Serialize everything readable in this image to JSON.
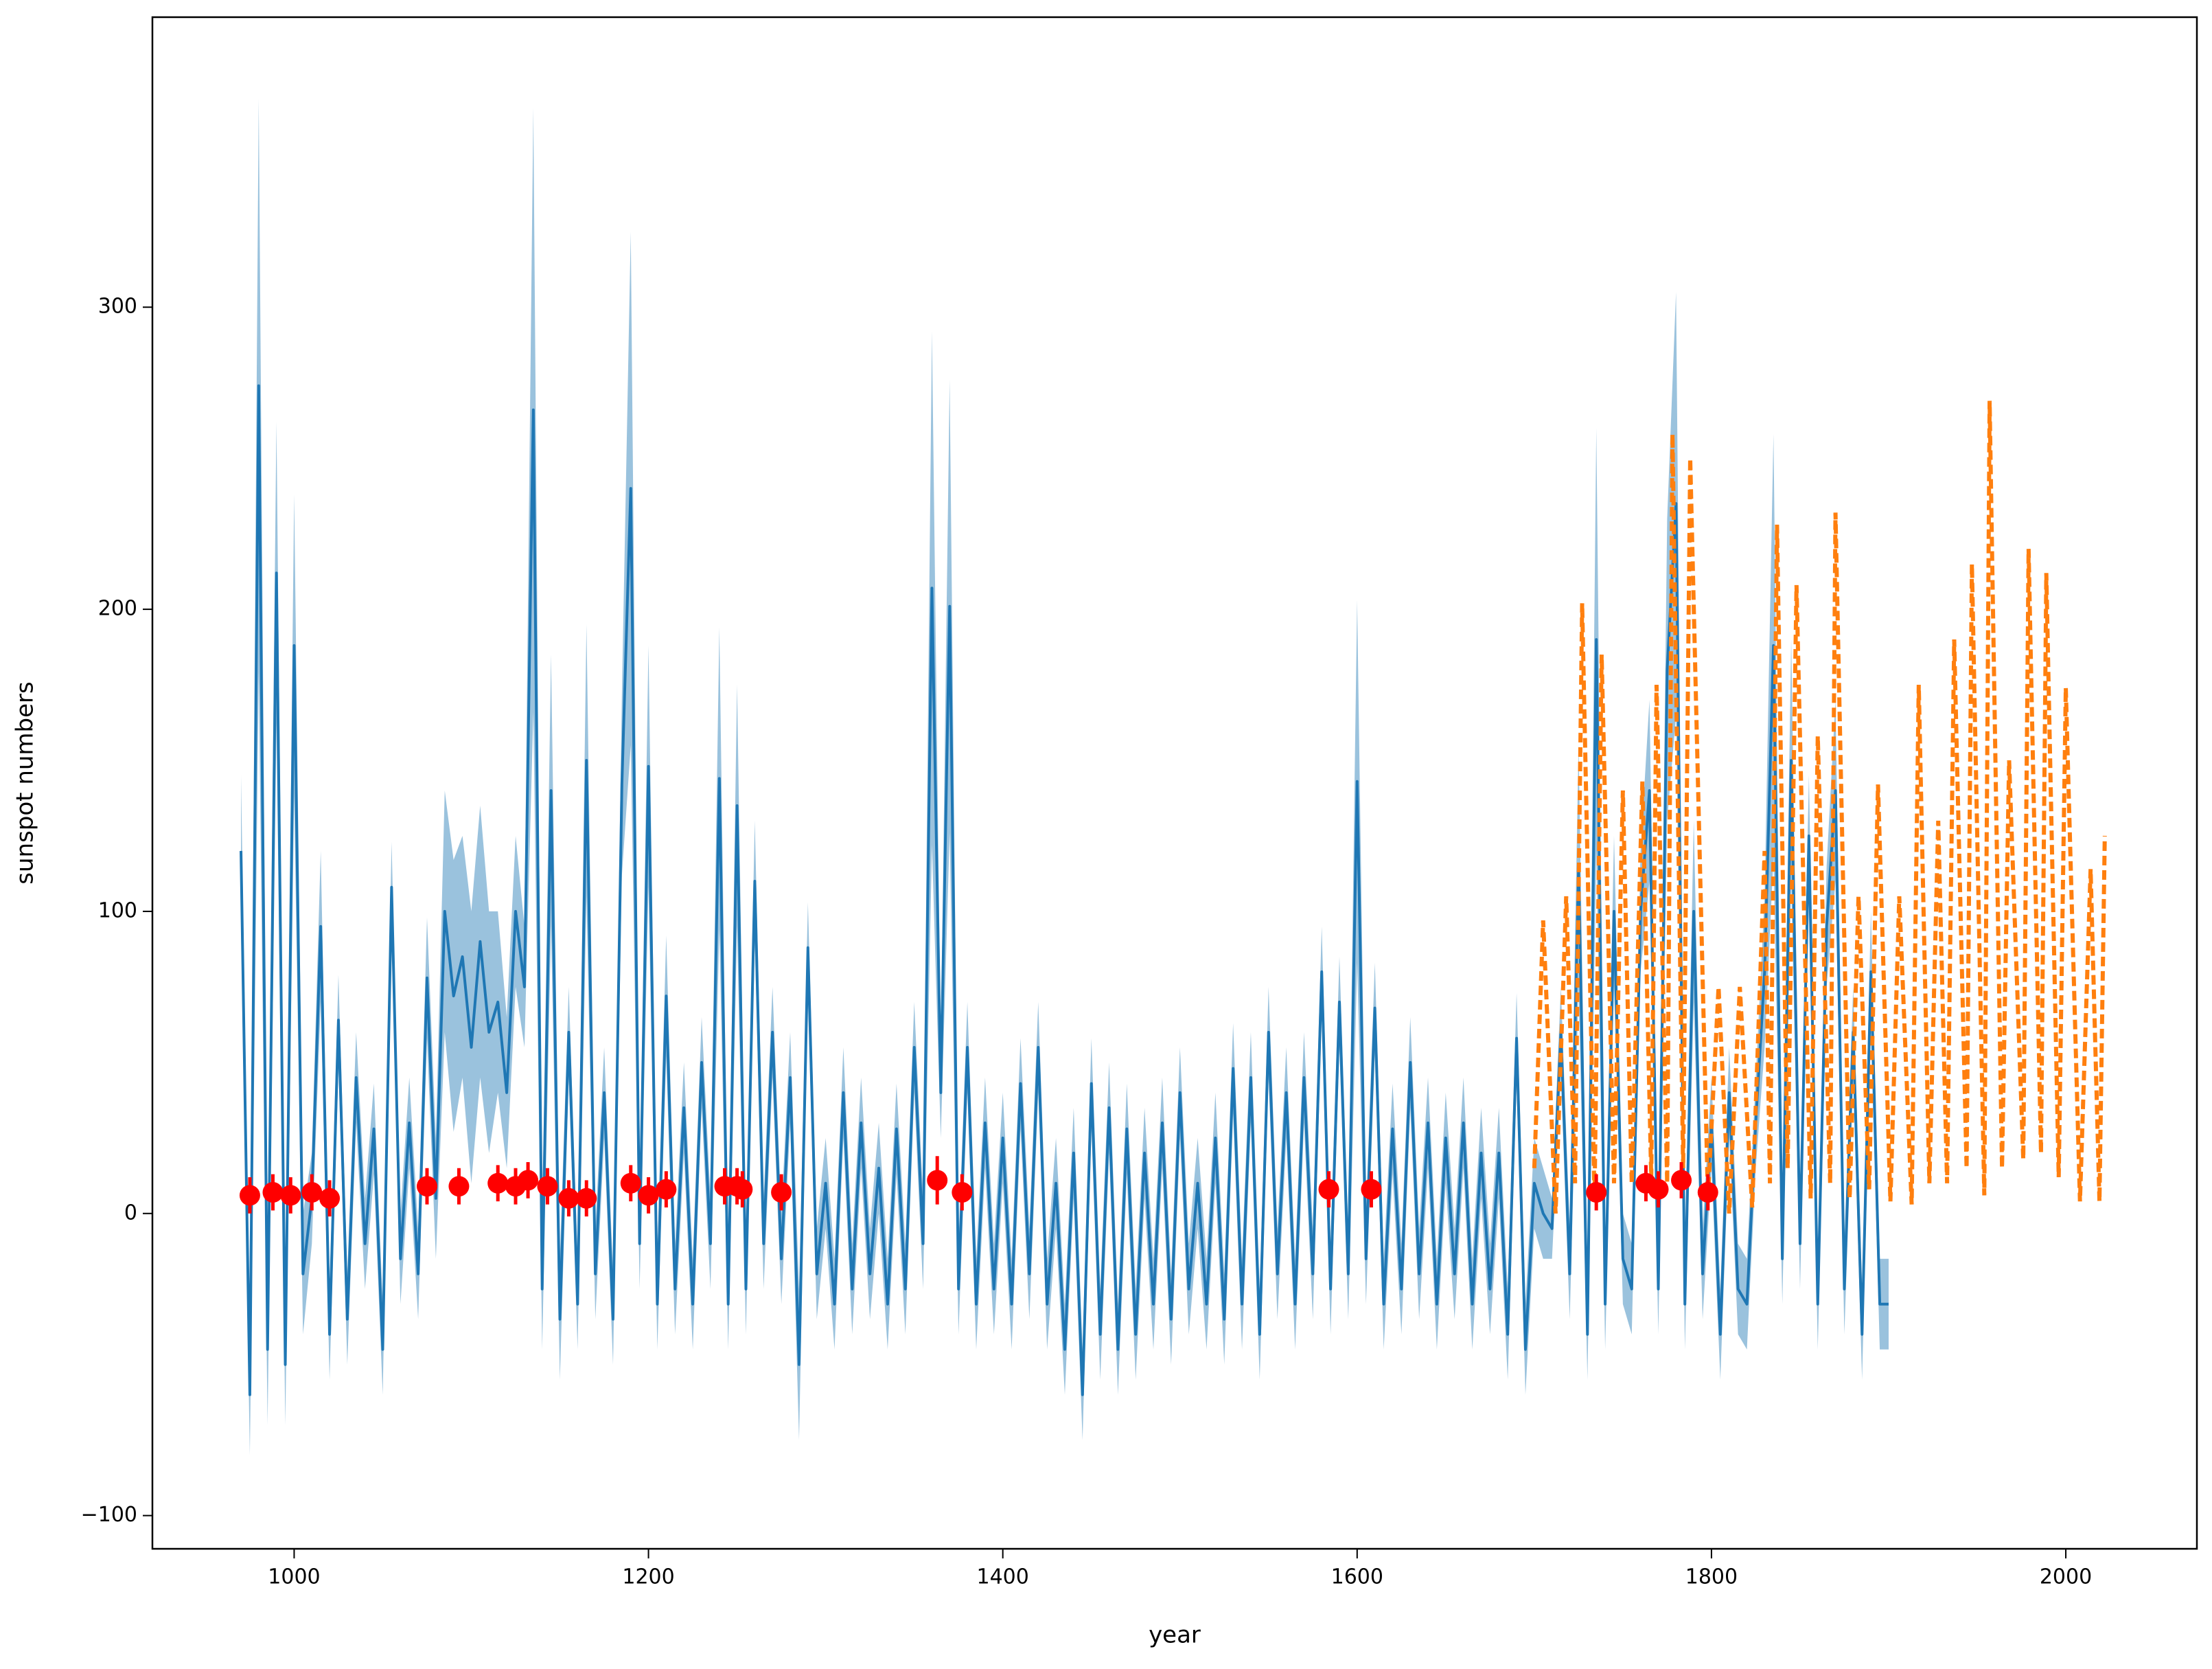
{
  "chart_data": {
    "type": "line",
    "xlabel": "year",
    "ylabel": "sunspot numbers",
    "xlim": [
      920,
      2074
    ],
    "ylim": [
      -111,
      396
    ],
    "xticks": [
      1000,
      1200,
      1400,
      1600,
      1800,
      2000
    ],
    "yticks": [
      {
        "value": -100,
        "label": "−100"
      },
      0,
      100,
      200,
      300
    ],
    "series": [
      {
        "type": "band-line",
        "color": "#1f77b4",
        "x": [
          970,
          975,
          980,
          985,
          990,
          995,
          1000,
          1005,
          1010,
          1015,
          1020,
          1025,
          1030,
          1035,
          1040,
          1045,
          1050,
          1055,
          1060,
          1065,
          1070,
          1075,
          1080,
          1085,
          1090,
          1095,
          1100,
          1105,
          1110,
          1115,
          1120,
          1125,
          1130,
          1135,
          1140,
          1145,
          1150,
          1155,
          1160,
          1165,
          1170,
          1175,
          1180,
          1185,
          1190,
          1195,
          1200,
          1205,
          1210,
          1215,
          1220,
          1225,
          1230,
          1235,
          1240,
          1245,
          1250,
          1255,
          1260,
          1265,
          1270,
          1275,
          1280,
          1285,
          1290,
          1295,
          1300,
          1305,
          1310,
          1315,
          1320,
          1325,
          1330,
          1335,
          1340,
          1345,
          1350,
          1355,
          1360,
          1365,
          1370,
          1375,
          1380,
          1385,
          1390,
          1395,
          1400,
          1405,
          1410,
          1415,
          1420,
          1425,
          1430,
          1435,
          1440,
          1445,
          1450,
          1455,
          1460,
          1465,
          1470,
          1475,
          1480,
          1485,
          1490,
          1495,
          1500,
          1505,
          1510,
          1515,
          1520,
          1525,
          1530,
          1535,
          1540,
          1545,
          1550,
          1555,
          1560,
          1565,
          1570,
          1575,
          1580,
          1585,
          1590,
          1595,
          1600,
          1605,
          1610,
          1615,
          1620,
          1625,
          1630,
          1635,
          1640,
          1645,
          1650,
          1655,
          1660,
          1665,
          1670,
          1675,
          1680,
          1685,
          1690,
          1695,
          1700,
          1705,
          1710,
          1715,
          1720,
          1725,
          1730,
          1735,
          1740,
          1745,
          1750,
          1755,
          1760,
          1765,
          1770,
          1775,
          1780,
          1785,
          1790,
          1795,
          1800,
          1805,
          1810,
          1815,
          1820,
          1825,
          1830,
          1835,
          1840,
          1845,
          1850,
          1855,
          1860,
          1865,
          1870,
          1875,
          1880,
          1885,
          1890,
          1895,
          1900
        ],
        "values": [
          120,
          -60,
          274,
          -45,
          212,
          -50,
          188,
          -20,
          5,
          95,
          -40,
          64,
          -35,
          45,
          -10,
          28,
          -45,
          108,
          -15,
          30,
          -20,
          78,
          5,
          100,
          72,
          85,
          55,
          90,
          60,
          70,
          40,
          100,
          75,
          266,
          -25,
          140,
          -35,
          60,
          -30,
          150,
          -20,
          40,
          -35,
          142,
          240,
          -10,
          148,
          -30,
          72,
          -25,
          35,
          -30,
          50,
          -10,
          144,
          -30,
          135,
          -25,
          110,
          -10,
          60,
          -15,
          45,
          -50,
          88,
          -20,
          10,
          -30,
          40,
          -25,
          30,
          -20,
          15,
          -30,
          28,
          -25,
          55,
          -10,
          207,
          40,
          201,
          -25,
          55,
          -30,
          30,
          -25,
          25,
          -30,
          43,
          -20,
          55,
          -30,
          10,
          -45,
          20,
          -60,
          43,
          -40,
          35,
          -45,
          28,
          -40,
          20,
          -30,
          30,
          -35,
          40,
          -25,
          10,
          -30,
          25,
          -35,
          48,
          -30,
          45,
          -40,
          60,
          -20,
          40,
          -30,
          45,
          -20,
          80,
          -25,
          70,
          -20,
          143,
          -15,
          68,
          -30,
          28,
          -25,
          50,
          -20,
          30,
          -30,
          25,
          -20,
          30,
          -30,
          20,
          -25,
          20,
          -40,
          58,
          -45,
          10,
          0,
          -5,
          60,
          -20,
          115,
          -40,
          190,
          -30,
          100,
          -15,
          -25,
          100,
          140,
          -25,
          180,
          235,
          -30,
          100,
          -20,
          30,
          -40,
          40,
          -25,
          -30,
          30,
          80,
          188,
          -15,
          150,
          -10,
          125,
          -30,
          95,
          140,
          -25,
          60,
          -40,
          80,
          -30,
          -30
        ],
        "band": [
          25,
          20,
          95,
          25,
          50,
          20,
          50,
          20,
          15,
          25,
          15,
          15,
          15,
          15,
          15,
          15,
          15,
          15,
          15,
          15,
          15,
          20,
          20,
          40,
          45,
          40,
          45,
          45,
          40,
          30,
          25,
          25,
          20,
          100,
          20,
          45,
          20,
          15,
          15,
          45,
          15,
          15,
          15,
          30,
          85,
          15,
          40,
          15,
          20,
          15,
          15,
          15,
          15,
          15,
          50,
          15,
          40,
          15,
          20,
          15,
          15,
          15,
          15,
          25,
          15,
          15,
          15,
          15,
          15,
          15,
          15,
          15,
          15,
          15,
          15,
          15,
          15,
          15,
          85,
          15,
          75,
          15,
          15,
          15,
          15,
          15,
          15,
          15,
          15,
          15,
          15,
          15,
          15,
          15,
          15,
          15,
          15,
          15,
          15,
          15,
          15,
          15,
          15,
          15,
          15,
          15,
          15,
          15,
          15,
          15,
          15,
          15,
          15,
          15,
          15,
          15,
          15,
          15,
          15,
          15,
          15,
          15,
          15,
          15,
          15,
          15,
          60,
          15,
          15,
          15,
          15,
          15,
          15,
          15,
          15,
          15,
          15,
          15,
          15,
          15,
          15,
          15,
          15,
          15,
          15,
          15,
          15,
          15,
          10,
          15,
          15,
          40,
          15,
          70,
          15,
          25,
          15,
          15,
          20,
          30,
          15,
          50,
          70,
          15,
          30,
          15,
          15,
          15,
          15,
          15,
          15,
          15,
          25,
          70,
          15,
          40,
          15,
          20,
          15,
          20,
          30,
          15,
          15,
          15,
          20,
          15,
          15
        ]
      },
      {
        "type": "dashed-line",
        "color": "#ff7f0e",
        "x": [
          1700,
          1705,
          1712,
          1718,
          1723,
          1727,
          1734,
          1738,
          1745,
          1750,
          1755,
          1761,
          1766,
          1769,
          1775,
          1778,
          1784,
          1788,
          1798,
          1804,
          1810,
          1816,
          1823,
          1830,
          1833,
          1837,
          1843,
          1848,
          1856,
          1860,
          1867,
          1870,
          1878,
          1883,
          1889,
          1894,
          1901,
          1906,
          1913,
          1917,
          1923,
          1928,
          1933,
          1937,
          1944,
          1947,
          1954,
          1957,
          1964,
          1968,
          1976,
          1979,
          1986,
          1989,
          1996,
          2000,
          2008,
          2014,
          2019,
          2022
        ],
        "values": [
          15,
          97,
          0,
          105,
          10,
          202,
          5,
          185,
          10,
          140,
          10,
          143,
          12,
          175,
          10,
          258,
          15,
          250,
          5,
          75,
          0,
          75,
          2,
          120,
          10,
          228,
          15,
          208,
          5,
          158,
          10,
          232,
          5,
          105,
          8,
          142,
          4,
          105,
          3,
          175,
          10,
          130,
          10,
          190,
          15,
          215,
          6,
          269,
          15,
          150,
          18,
          220,
          20,
          212,
          12,
          174,
          4,
          114,
          4,
          125
        ]
      },
      {
        "type": "errorbar",
        "color": "#ff0000",
        "x": [
          975,
          988,
          998,
          1010,
          1020,
          1075,
          1093,
          1115,
          1125,
          1132,
          1143,
          1155,
          1165,
          1190,
          1200,
          1210,
          1243,
          1250,
          1253,
          1275,
          1363,
          1377,
          1584,
          1608,
          1735,
          1763,
          1770,
          1783,
          1798
        ],
        "values": [
          6,
          7,
          6,
          7,
          5,
          9,
          9,
          10,
          9,
          11,
          9,
          5,
          5,
          10,
          6,
          8,
          9,
          9,
          8,
          7,
          11,
          7,
          8,
          8,
          7,
          10,
          8,
          11,
          7
        ],
        "errors": [
          6,
          6,
          6,
          6,
          6,
          6,
          6,
          6,
          6,
          6,
          6,
          6,
          6,
          6,
          6,
          6,
          6,
          6,
          6,
          6,
          8,
          6,
          6,
          6,
          6,
          6,
          6,
          6,
          6
        ]
      }
    ]
  }
}
